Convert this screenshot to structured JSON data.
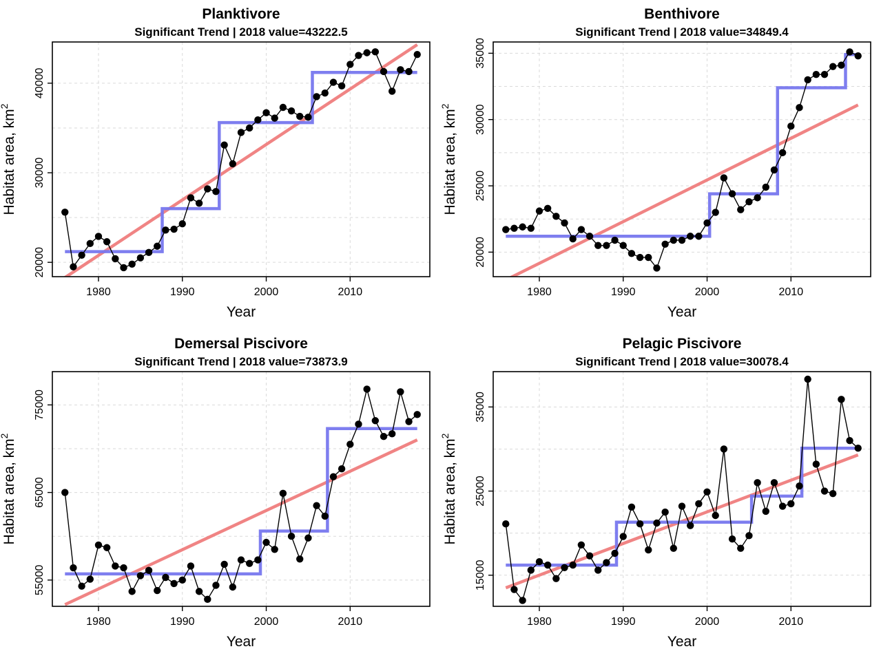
{
  "chart_data": [
    {
      "type": "line",
      "title": "Planktivore",
      "subtitle": "Significant Trend | 2018 value=43222.5",
      "xlabel": "Year",
      "ylabel": "Habitat area, km",
      "ylabel_sup": "2",
      "xlim": [
        1974.5,
        2019.5
      ],
      "ylim": [
        18400,
        44600
      ],
      "xticks": [
        1980,
        1990,
        2000,
        2010
      ],
      "yticks": [
        20000,
        30000,
        40000
      ],
      "ygrid": [
        20000,
        25000,
        30000,
        35000,
        40000
      ],
      "series": [
        {
          "name": "Habitat area",
          "x": [
            1976,
            1977,
            1978,
            1979,
            1980,
            1981,
            1982,
            1983,
            1984,
            1985,
            1986,
            1987,
            1988,
            1989,
            1990,
            1991,
            1992,
            1993,
            1994,
            1995,
            1996,
            1997,
            1998,
            1999,
            2000,
            2001,
            2002,
            2003,
            2004,
            2005,
            2006,
            2007,
            2008,
            2009,
            2010,
            2011,
            2012,
            2013,
            2014,
            2015,
            2016,
            2017,
            2018
          ],
          "y": [
            25600,
            19500,
            20800,
            22100,
            22900,
            22300,
            20400,
            19400,
            19800,
            20500,
            21100,
            21800,
            23600,
            23700,
            24300,
            27200,
            26600,
            28200,
            27900,
            33100,
            31000,
            34500,
            35000,
            35900,
            36700,
            36100,
            37300,
            36900,
            36300,
            36200,
            38500,
            38900,
            40100,
            39700,
            42100,
            43100,
            43400,
            43500,
            41300,
            39100,
            41500,
            41300,
            43200
          ]
        },
        {
          "name": "Regime mean",
          "x": [
            1976,
            1987.6,
            1987.6,
            1994.4,
            1994.4,
            2005.5,
            2005.5,
            2018
          ],
          "y": [
            21200,
            21200,
            26000,
            26000,
            35600,
            35600,
            41200,
            41200
          ]
        },
        {
          "name": "Linear trend",
          "x": [
            1976,
            2018
          ],
          "y": [
            18300,
            44300
          ]
        }
      ]
    },
    {
      "type": "line",
      "title": "Benthivore",
      "subtitle": "Significant Trend | 2018 value=34849.4",
      "xlabel": "Year",
      "ylabel": "Habitat area, km",
      "ylabel_sup": "2",
      "xlim": [
        1974.5,
        2019.5
      ],
      "ylim": [
        18150,
        35850
      ],
      "xticks": [
        1980,
        1990,
        2000,
        2010
      ],
      "yticks": [
        20000,
        25000,
        30000,
        35000
      ],
      "ygrid": [
        20000,
        22500,
        25000,
        27500,
        30000,
        32500,
        35000
      ],
      "series": [
        {
          "name": "Habitat area",
          "x": [
            1976,
            1977,
            1978,
            1979,
            1980,
            1981,
            1982,
            1983,
            1984,
            1985,
            1986,
            1987,
            1988,
            1989,
            1990,
            1991,
            1992,
            1993,
            1994,
            1995,
            1996,
            1997,
            1998,
            1999,
            2000,
            2001,
            2002,
            2003,
            2004,
            2005,
            2006,
            2007,
            2008,
            2009,
            2010,
            2011,
            2012,
            2013,
            2014,
            2015,
            2016,
            2017,
            2018
          ],
          "y": [
            21700,
            21800,
            21900,
            21800,
            23100,
            23300,
            22700,
            22200,
            21000,
            21700,
            21200,
            20500,
            20500,
            20900,
            20500,
            19900,
            19600,
            19600,
            18800,
            20600,
            20900,
            20900,
            21200,
            21200,
            22200,
            23000,
            25600,
            24400,
            23200,
            23800,
            24100,
            24900,
            26200,
            27500,
            29500,
            30900,
            33000,
            33400,
            33400,
            34000,
            34100,
            35100,
            34800
          ]
        },
        {
          "name": "Regime mean",
          "x": [
            1976,
            2000.3,
            2000.3,
            2008.4,
            2008.4,
            2016.5,
            2016.5,
            2018
          ],
          "y": [
            21200,
            21200,
            24400,
            24400,
            32400,
            32400,
            34900,
            34900
          ]
        },
        {
          "name": "Linear trend",
          "x": [
            1976,
            2018
          ],
          "y": [
            17900,
            31100
          ]
        }
      ]
    },
    {
      "type": "line",
      "title": "Demersal Piscivore",
      "subtitle": "Significant Trend | 2018 value=73873.9",
      "xlabel": "Year",
      "ylabel": "Habitat area, km",
      "ylabel_sup": "2",
      "xlim": [
        1974.5,
        2019.5
      ],
      "ylim": [
        52000,
        78800
      ],
      "xticks": [
        1980,
        1990,
        2000,
        2010
      ],
      "yticks": [
        55000,
        65000,
        75000
      ],
      "ygrid": [
        55000,
        60000,
        65000,
        70000,
        75000
      ],
      "series": [
        {
          "name": "Habitat area",
          "x": [
            1976,
            1977,
            1978,
            1979,
            1980,
            1981,
            1982,
            1983,
            1984,
            1985,
            1986,
            1987,
            1988,
            1989,
            1990,
            1991,
            1992,
            1993,
            1994,
            1995,
            1996,
            1997,
            1998,
            1999,
            2000,
            2001,
            2002,
            2003,
            2004,
            2005,
            2006,
            2007,
            2008,
            2009,
            2010,
            2011,
            2012,
            2013,
            2014,
            2015,
            2016,
            2017,
            2018
          ],
          "y": [
            65000,
            56400,
            54300,
            55100,
            59000,
            58700,
            56600,
            56400,
            53700,
            55500,
            56100,
            53800,
            55300,
            54600,
            55000,
            56600,
            53700,
            52800,
            54400,
            56800,
            54200,
            57300,
            56900,
            57300,
            59300,
            58500,
            64900,
            60000,
            57400,
            59800,
            63500,
            62300,
            66800,
            67700,
            70500,
            72800,
            76800,
            73200,
            71400,
            71700,
            76500,
            73100,
            73900
          ]
        },
        {
          "name": "Regime mean",
          "x": [
            1976,
            1999.3,
            1999.3,
            2007.3,
            2007.3,
            2018
          ],
          "y": [
            55700,
            55700,
            60600,
            60600,
            72300,
            72300
          ]
        },
        {
          "name": "Linear trend",
          "x": [
            1976,
            2018
          ],
          "y": [
            52200,
            71000
          ]
        }
      ]
    },
    {
      "type": "line",
      "title": "Pelagic Piscivore",
      "subtitle": "Significant Trend | 2018 value=30078.4",
      "xlabel": "Year",
      "ylabel": "Habitat area, km",
      "ylabel_sup": "2",
      "xlim": [
        1974.5,
        2019.5
      ],
      "ylim": [
        11300,
        39200
      ],
      "xticks": [
        1980,
        1990,
        2000,
        2010
      ],
      "yticks": [
        15000,
        25000,
        35000
      ],
      "ygrid": [
        15000,
        20000,
        25000,
        30000,
        35000
      ],
      "series": [
        {
          "name": "Habitat area",
          "x": [
            1976,
            1977,
            1978,
            1979,
            1980,
            1981,
            1982,
            1983,
            1984,
            1985,
            1986,
            1987,
            1988,
            1989,
            1990,
            1991,
            1992,
            1993,
            1994,
            1995,
            1996,
            1997,
            1998,
            1999,
            2000,
            2001,
            2002,
            2003,
            2004,
            2005,
            2006,
            2007,
            2008,
            2009,
            2010,
            2011,
            2012,
            2013,
            2014,
            2015,
            2016,
            2017,
            2018
          ],
          "y": [
            21100,
            13300,
            12000,
            15600,
            16600,
            16200,
            14600,
            15900,
            16200,
            18600,
            17300,
            15600,
            16500,
            17600,
            19600,
            23100,
            21100,
            18000,
            21200,
            22500,
            18200,
            23200,
            20900,
            23500,
            24900,
            22100,
            30000,
            19300,
            18200,
            19700,
            26000,
            22600,
            26000,
            23200,
            23500,
            25600,
            38300,
            28200,
            25000,
            24700,
            35900,
            31000,
            30100
          ]
        },
        {
          "name": "Regime mean",
          "x": [
            1976,
            1989.2,
            1989.2,
            2005.3,
            2005.3,
            2011.3,
            2011.3,
            2018
          ],
          "y": [
            16200,
            16200,
            21300,
            21300,
            24400,
            24400,
            30100,
            30100
          ]
        },
        {
          "name": "Linear trend",
          "x": [
            1976,
            2018
          ],
          "y": [
            13500,
            29300
          ]
        }
      ]
    }
  ],
  "colors": {
    "observed": "#000000",
    "regime": "#7777ee",
    "trend": "#ee7777",
    "grid": "#d9d9d9"
  }
}
